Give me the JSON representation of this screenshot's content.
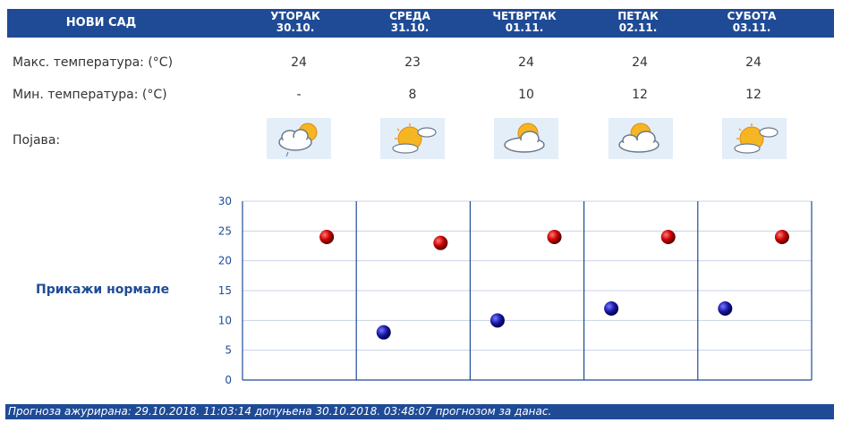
{
  "header": {
    "city": "НОВИ САД"
  },
  "days": [
    {
      "name": "УТОРАК",
      "date": "30.10.",
      "max": "24",
      "min": "-",
      "icon": "cloud-sun-rain-icon"
    },
    {
      "name": "СРЕДА",
      "date": "31.10.",
      "max": "23",
      "min": "8",
      "icon": "sun-cloud-icon"
    },
    {
      "name": "ЧЕТВРТАК",
      "date": "01.11.",
      "max": "24",
      "min": "10",
      "icon": "partly-cloudy-icon"
    },
    {
      "name": "ПЕТАК",
      "date": "02.11.",
      "max": "24",
      "min": "12",
      "icon": "partly-cloudy-icon"
    },
    {
      "name": "СУБОТА",
      "date": "03.11.",
      "max": "24",
      "min": "12",
      "icon": "sun-cloud-icon"
    }
  ],
  "labels": {
    "max": "Макс. температура: (°C)",
    "min": "Мин. температура: (°C)",
    "phenomena": "Појава:"
  },
  "normals_link": "Прикажи нормале",
  "footer": "Прогноза ажурирана:  29.10.2018. 11:03:14 допуњена 30.10.2018. 03:48:07 прогнозом за данас.",
  "chart_data": {
    "type": "scatter",
    "ylim": [
      0,
      30
    ],
    "yticks": [
      "0",
      "5",
      "10",
      "15",
      "20",
      "25",
      "30"
    ],
    "grid": true,
    "series": [
      {
        "kind": "max",
        "color": "#cc0000",
        "values": [
          24,
          23,
          24,
          24,
          24
        ]
      },
      {
        "kind": "min",
        "color": "#1a1aa8",
        "values": [
          null,
          8,
          10,
          12,
          12
        ]
      }
    ]
  }
}
